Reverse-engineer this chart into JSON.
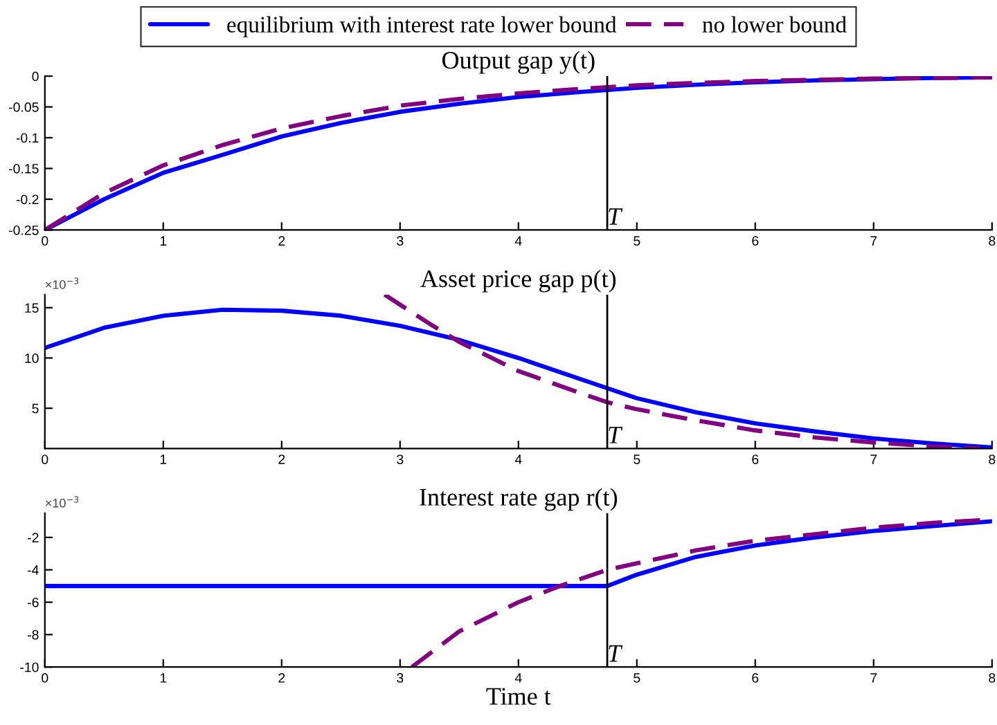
{
  "chart_data": [
    {
      "type": "line",
      "title": "Output gap y(t)",
      "legend": "top",
      "grid": false,
      "xlim": [
        0,
        8
      ],
      "xticks": [
        0,
        1,
        2,
        3,
        4,
        5,
        6,
        7,
        8
      ],
      "ylim": [
        -0.25,
        0
      ],
      "yticks": [
        -0.25,
        -0.2,
        -0.15,
        -0.1,
        -0.05,
        0
      ],
      "ref_lines": [
        {
          "axis": "x",
          "value": 4.75,
          "label": "T",
          "color": "#000000"
        }
      ],
      "series": [
        {
          "name": "equilibrium with interest rate lower bound",
          "color": "#0000ff",
          "line_style": "solid",
          "x": [
            0,
            0.5,
            1,
            1.5,
            2,
            2.5,
            3,
            3.5,
            4,
            4.5,
            5,
            5.5,
            6,
            6.5,
            7,
            7.5,
            8
          ],
          "values": [
            -0.25,
            -0.2,
            -0.157,
            -0.128,
            -0.098,
            -0.076,
            -0.058,
            -0.045,
            -0.034,
            -0.026,
            -0.019,
            -0.014,
            -0.01,
            -0.007,
            -0.005,
            -0.003,
            -0.002
          ]
        },
        {
          "name": "no lower bound",
          "color": "#800080",
          "line_style": "dashed",
          "x": [
            0,
            0.5,
            1,
            1.5,
            2,
            2.5,
            3,
            3.5,
            4,
            4.5,
            5,
            5.5,
            6,
            6.5,
            7,
            7.5,
            8
          ],
          "values": [
            -0.25,
            -0.19,
            -0.145,
            -0.112,
            -0.085,
            -0.065,
            -0.048,
            -0.037,
            -0.028,
            -0.021,
            -0.015,
            -0.011,
            -0.008,
            -0.006,
            -0.004,
            -0.003,
            -0.002
          ]
        }
      ]
    },
    {
      "type": "line",
      "title": "Asset price gap p(t)",
      "grid": false,
      "annotations": [
        "×10$^{−3}$"
      ],
      "xlim": [
        0,
        8
      ],
      "xticks": [
        0,
        1,
        2,
        3,
        4,
        5,
        6,
        7,
        8
      ],
      "ylim": [
        1,
        16.3
      ],
      "yticks": [
        5,
        10,
        15
      ],
      "ref_lines": [
        {
          "axis": "x",
          "value": 4.75,
          "label": "T",
          "color": "#000000"
        }
      ],
      "series": [
        {
          "color": "#0000ff",
          "line_style": "solid",
          "x": [
            0,
            0.5,
            1,
            1.5,
            2,
            2.5,
            3,
            3.5,
            4,
            4.5,
            4.75,
            5,
            5.5,
            6,
            6.5,
            7,
            7.5,
            8
          ],
          "values": [
            11,
            13,
            14.2,
            14.8,
            14.7,
            14.2,
            13.2,
            11.8,
            10,
            8,
            7,
            6,
            4.6,
            3.5,
            2.7,
            2,
            1.5,
            1.1
          ]
        },
        {
          "color": "#800080",
          "line_style": "dashed",
          "x": [
            2.87,
            3,
            3.25,
            3.5,
            4,
            4.5,
            4.75,
            5,
            5.5,
            6,
            6.5,
            7,
            7.5,
            7.9
          ],
          "values": [
            16.3,
            15.3,
            13.4,
            11.6,
            8.7,
            6.6,
            5.6,
            4.9,
            3.8,
            2.8,
            2.1,
            1.6,
            1.2,
            1
          ]
        }
      ]
    },
    {
      "type": "line",
      "title": "Interest rate gap r(t)",
      "xlabel": "Time t",
      "grid": false,
      "annotations": [
        "×10$^{−3}$"
      ],
      "xlim": [
        0,
        8
      ],
      "xticks": [
        0,
        1,
        2,
        3,
        4,
        5,
        6,
        7,
        8
      ],
      "ylim": [
        -10,
        -0.5
      ],
      "yticks": [
        -10,
        -8,
        -6,
        -4,
        -2
      ],
      "ref_lines": [
        {
          "axis": "x",
          "value": 4.75,
          "label": "T",
          "color": "#000000"
        }
      ],
      "series": [
        {
          "color": "#0000ff",
          "line_style": "solid",
          "x": [
            0,
            4.75,
            5,
            5.5,
            6,
            6.5,
            7,
            7.5,
            8
          ],
          "values": [
            -5,
            -5,
            -4.3,
            -3.2,
            -2.5,
            -2,
            -1.6,
            -1.3,
            -1
          ]
        },
        {
          "color": "#800080",
          "line_style": "dashed",
          "x": [
            3.1,
            3.5,
            4,
            4.35,
            4.75,
            5,
            5.5,
            6,
            6.5,
            7,
            7.5,
            8
          ],
          "values": [
            -10,
            -7.8,
            -6,
            -5,
            -4,
            -3.6,
            -2.8,
            -2.2,
            -1.8,
            -1.4,
            -1.1,
            -0.9
          ]
        }
      ]
    }
  ]
}
